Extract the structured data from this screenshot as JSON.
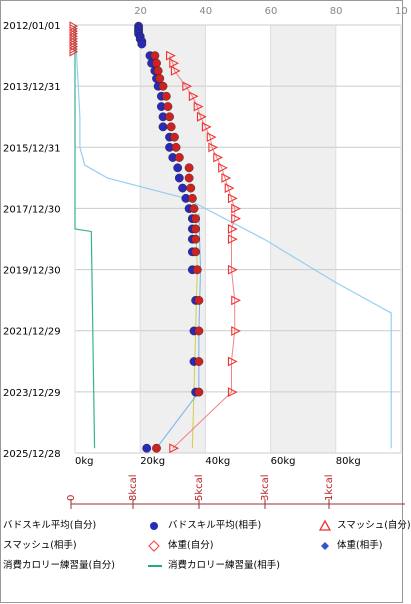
{
  "chart_data": {
    "type": "line",
    "title": "",
    "y_axis": {
      "type": "date",
      "reversed": true,
      "range": [
        "2012/01/01",
        "2025/12/28"
      ],
      "tick_labels": [
        "2012/01/01",
        "2013/12/31",
        "2015/12/31",
        "2017/12/30",
        "2019/12/30",
        "2021/12/29",
        "2023/12/29",
        "2025/12/28"
      ]
    },
    "x_axis_weight": {
      "unit": "kg",
      "range": [
        0,
        100
      ],
      "tick_labels_bottom": [
        "0kg",
        "20kg",
        "40kg",
        "60kg",
        "80kg"
      ],
      "tick_labels_top": [
        "20",
        "40",
        "60",
        "80",
        "10"
      ]
    },
    "x_axis_calorie": {
      "unit": "kcal",
      "tick_labels": [
        "0",
        "8kcal",
        "5kcal",
        "3kcal",
        "1kcal"
      ]
    },
    "shaded_bands_kg": [
      [
        20,
        40
      ],
      [
        60,
        80
      ]
    ],
    "grid": true,
    "colors": {
      "badminton_self": "#2a2ab8",
      "badminton_opp": "#cc2222",
      "smash_self": "#ee3333",
      "smash_opp": "#ee7777",
      "weight_self": "#cccc33",
      "weight_opp": "#66aaee",
      "calorie_self": "#88ccee",
      "calorie_opp": "#22aa88"
    },
    "series": [
      {
        "name": "バドスキル平均(自分)",
        "marker": "circle",
        "points": [
          [
            "2012/01/15",
            19.5
          ],
          [
            "2012/02/15",
            19.5
          ],
          [
            "2012/03/15",
            19.5
          ],
          [
            "2012/04/15",
            19.5
          ],
          [
            "2012/05/15",
            20
          ],
          [
            "2012/06/15",
            20
          ],
          [
            "2012/07/15",
            20.5
          ],
          [
            "2012/08/15",
            20.5
          ],
          [
            "2013/01/01",
            23
          ],
          [
            "2013/04/01",
            23.5
          ],
          [
            "2013/07/01",
            24.5
          ],
          [
            "2013/10/01",
            25
          ],
          [
            "2014/01/01",
            25.5
          ],
          [
            "2014/05/01",
            26.5
          ],
          [
            "2014/09/01",
            26.5
          ],
          [
            "2015/01/01",
            27
          ],
          [
            "2015/05/01",
            27
          ],
          [
            "2015/09/01",
            29
          ],
          [
            "2016/01/01",
            29
          ],
          [
            "2016/05/01",
            30
          ],
          [
            "2016/09/01",
            31.5
          ],
          [
            "2017/01/01",
            32
          ],
          [
            "2017/05/01",
            33
          ],
          [
            "2017/09/01",
            34
          ],
          [
            "2018/01/01",
            35
          ],
          [
            "2018/05/01",
            36
          ],
          [
            "2018/09/01",
            36
          ],
          [
            "2019/01/01",
            36
          ],
          [
            "2019/06/01",
            36
          ],
          [
            "2020/01/01",
            36
          ],
          [
            "2021/01/01",
            37
          ],
          [
            "2022/01/01",
            36.5
          ],
          [
            "2023/01/01",
            36.5
          ],
          [
            "2024/01/01",
            37
          ],
          [
            "2025/11/01",
            22
          ]
        ]
      },
      {
        "name": "バドスキル平均(相手)",
        "marker": "circle",
        "points": [
          [
            "2013/01/01",
            24.5
          ],
          [
            "2013/04/01",
            25
          ],
          [
            "2013/07/01",
            25.5
          ],
          [
            "2013/10/01",
            26
          ],
          [
            "2014/01/01",
            27
          ],
          [
            "2014/05/01",
            28
          ],
          [
            "2014/09/01",
            28.5
          ],
          [
            "2015/01/01",
            29
          ],
          [
            "2015/05/01",
            29.5
          ],
          [
            "2015/09/01",
            30.5
          ],
          [
            "2016/01/01",
            31
          ],
          [
            "2016/05/01",
            32
          ],
          [
            "2016/09/01",
            35
          ],
          [
            "2017/01/01",
            35
          ],
          [
            "2017/05/01",
            35.5
          ],
          [
            "2017/09/01",
            36
          ],
          [
            "2018/01/01",
            36.5
          ],
          [
            "2018/05/01",
            37
          ],
          [
            "2018/09/01",
            37
          ],
          [
            "2019/01/01",
            37
          ],
          [
            "2019/06/01",
            37
          ],
          [
            "2020/01/01",
            37.5
          ],
          [
            "2021/01/01",
            38
          ],
          [
            "2022/01/01",
            38
          ],
          [
            "2023/01/01",
            38
          ],
          [
            "2024/01/01",
            38
          ],
          [
            "2025/11/01",
            25
          ]
        ]
      },
      {
        "name": "スマッシュ(自分)",
        "marker": "triangle",
        "points": [
          [
            "2013/01/01",
            29
          ],
          [
            "2013/04/01",
            30
          ],
          [
            "2013/07/01",
            30.5
          ],
          [
            "2014/01/01",
            34
          ],
          [
            "2014/05/01",
            36
          ],
          [
            "2014/09/01",
            37.5
          ],
          [
            "2015/01/01",
            38.5
          ],
          [
            "2015/05/01",
            40
          ],
          [
            "2015/09/01",
            41.5
          ],
          [
            "2016/01/01",
            42
          ],
          [
            "2016/05/01",
            43.5
          ],
          [
            "2016/09/01",
            45
          ],
          [
            "2017/01/01",
            46
          ],
          [
            "2017/05/01",
            47
          ],
          [
            "2017/09/01",
            48
          ],
          [
            "2018/01/01",
            49
          ],
          [
            "2018/05/01",
            49
          ],
          [
            "2018/09/01",
            48
          ],
          [
            "2019/01/01",
            48
          ],
          [
            "2020/01/01",
            48
          ],
          [
            "2021/01/01",
            49
          ],
          [
            "2022/01/01",
            49
          ],
          [
            "2023/01/01",
            48
          ],
          [
            "2024/01/01",
            48
          ],
          [
            "2025/11/01",
            30
          ]
        ]
      },
      {
        "name": "スマッシュ(相手)",
        "marker": "open-triangle",
        "points": [
          [
            "2012/01/15",
            0
          ],
          [
            "2012/02/15",
            0
          ],
          [
            "2012/03/15",
            0
          ],
          [
            "2012/04/15",
            0
          ],
          [
            "2012/05/15",
            0
          ],
          [
            "2012/06/15",
            0
          ],
          [
            "2012/07/15",
            0
          ],
          [
            "2012/08/15",
            0
          ],
          [
            "2012/09/15",
            0
          ],
          [
            "2012/10/15",
            0
          ],
          [
            "2012/11/15",
            0
          ]
        ]
      },
      {
        "name": "体重(自分)",
        "marker": "diamond",
        "points": [
          [
            "2018/03/01",
            37
          ],
          [
            "2020/01/01",
            37.5
          ],
          [
            "2022/01/01",
            37
          ],
          [
            "2025/11/01",
            36
          ]
        ]
      },
      {
        "name": "体重(相手)",
        "marker": "diamond",
        "points": [
          [
            "2018/03/01",
            38
          ],
          [
            "2020/01/01",
            38.5
          ],
          [
            "2022/01/01",
            38
          ],
          [
            "2024/01/01",
            38
          ],
          [
            "2025/11/01",
            25
          ]
        ]
      },
      {
        "name": "消費カロリー練習量(自分)",
        "marker": "line",
        "points": [
          [
            "2012/01/01",
            0
          ],
          [
            "2013/01/01",
            0.5
          ],
          [
            "2014/01/01",
            1
          ],
          [
            "2015/01/01",
            1.5
          ],
          [
            "2016/01/01",
            1.5
          ],
          [
            "2016/08/01",
            3
          ],
          [
            "2017/01/01",
            10
          ],
          [
            "2017/09/01",
            34
          ],
          [
            "2018/09/01",
            52
          ],
          [
            "2019/01/01",
            58
          ],
          [
            "2020/06/01",
            80
          ],
          [
            "2021/06/01",
            97
          ],
          [
            "2025/11/01",
            97
          ]
        ]
      },
      {
        "name": "消費カロリー練習量(相手)",
        "marker": "line",
        "points": [
          [
            "2012/01/01",
            0
          ],
          [
            "2018/09/01",
            0
          ],
          [
            "2018/10/01",
            5
          ],
          [
            "2025/11/01",
            6
          ]
        ]
      }
    ]
  },
  "legend": {
    "items": [
      {
        "label": "バドスキル平均(自分)",
        "marker": "circle",
        "color": "#2a2ab8"
      },
      {
        "label": "バドスキル平均(相手)",
        "marker": "circle",
        "color": "#2a2ab8"
      },
      {
        "label": "スマッシュ(自分)",
        "marker": "triangle",
        "color": "#ee3333"
      },
      {
        "label": "スマッシュ(相手)",
        "marker": "open-triangle",
        "color": "#ee7777"
      },
      {
        "label": "体重(自分)",
        "marker": "diamond-open",
        "color": "#ee5555"
      },
      {
        "label": "体重(相手)",
        "marker": "diamond",
        "color": "#3355cc"
      },
      {
        "label": "消費カロリー練習量(自分)",
        "marker": "line",
        "color": "#88ccee"
      },
      {
        "label": "消費カロリー練習量(相手)",
        "marker": "line",
        "color": "#22aa88"
      }
    ]
  }
}
